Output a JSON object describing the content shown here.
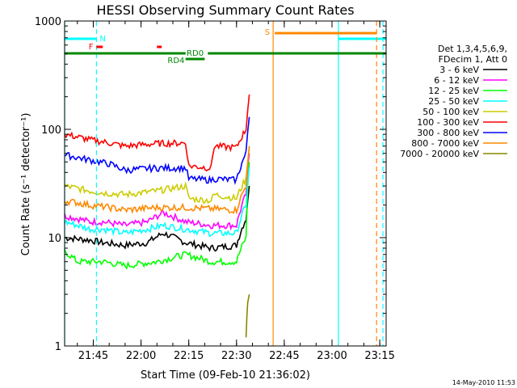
{
  "chart_data": {
    "type": "line",
    "title": "HESSI Observing Summary Count Rates",
    "xlabel": "Start Time (09-Feb-10 21:36:02)",
    "ylabel": "Count Rate (s⁻¹ detector⁻¹)",
    "xlim": [
      "21:36",
      "23:17"
    ],
    "ylim": [
      1,
      1000
    ],
    "yscale": "log",
    "xticks": [
      "21:45",
      "22:00",
      "22:15",
      "22:30",
      "22:45",
      "23:00",
      "23:15"
    ],
    "yticks": [
      "1",
      "10",
      "100",
      "1000"
    ],
    "legend_header": [
      "Det 1,3,4,5,6,9,",
      "FDecim 1, Att 0"
    ],
    "series": [
      {
        "name": "3 - 6 keV",
        "color": "#000000",
        "x": [
          "21:36",
          "21:44",
          "21:48",
          "21:55",
          "22:02",
          "22:07",
          "22:14",
          "22:22",
          "22:30",
          "22:33",
          "22:34"
        ],
        "values": [
          10,
          9.5,
          9,
          8.5,
          9,
          11,
          9,
          8,
          8.5,
          15,
          30
        ]
      },
      {
        "name": "6 - 12 keV",
        "color": "#ff00ff",
        "x": [
          "21:36",
          "21:44",
          "21:48",
          "21:55",
          "22:02",
          "22:07",
          "22:14",
          "22:22",
          "22:30",
          "22:33",
          "22:34"
        ],
        "values": [
          16,
          14,
          14,
          13,
          14,
          17,
          14,
          13,
          13,
          25,
          60
        ]
      },
      {
        "name": "12 - 25 keV",
        "color": "#00ff00",
        "x": [
          "21:36",
          "21:40",
          "21:48",
          "21:55",
          "22:05",
          "22:14",
          "22:22",
          "22:30",
          "22:33",
          "22:34"
        ],
        "values": [
          7.5,
          6,
          6,
          5.5,
          6,
          7,
          6,
          6,
          10,
          50
        ]
      },
      {
        "name": "25 - 50 keV",
        "color": "#00ffff",
        "x": [
          "21:36",
          "21:44",
          "21:48",
          "21:55",
          "22:02",
          "22:07",
          "22:14",
          "22:22",
          "22:30",
          "22:33",
          "22:34"
        ],
        "values": [
          14,
          12,
          12,
          11,
          12,
          13,
          12,
          11,
          11,
          20,
          45
        ]
      },
      {
        "name": "50 - 100 keV",
        "color": "#cccc00",
        "x": [
          "21:36",
          "21:44",
          "21:48",
          "21:55",
          "22:05",
          "22:14",
          "22:15",
          "22:22",
          "22:23",
          "22:30",
          "22:33",
          "22:34"
        ],
        "values": [
          30,
          27,
          26,
          25,
          27,
          30,
          23,
          22,
          25,
          23,
          35,
          70
        ]
      },
      {
        "name": "100 - 300 keV",
        "color": "#ff0000",
        "x": [
          "21:36",
          "21:44",
          "21:50",
          "21:55",
          "22:05",
          "22:14",
          "22:15",
          "22:22",
          "22:23",
          "22:30",
          "22:33",
          "22:34"
        ],
        "values": [
          90,
          80,
          75,
          70,
          74,
          75,
          46,
          44,
          70,
          68,
          100,
          210
        ]
      },
      {
        "name": "300 - 800 keV",
        "color": "#0000ff",
        "x": [
          "21:36",
          "21:44",
          "21:50",
          "21:55",
          "22:05",
          "22:14",
          "22:15",
          "22:22",
          "22:23",
          "22:30",
          "22:33",
          "22:34"
        ],
        "values": [
          58,
          52,
          48,
          42,
          44,
          44,
          35,
          34,
          35,
          34,
          60,
          130
        ]
      },
      {
        "name": "800 - 7000 keV",
        "color": "#ff8800",
        "x": [
          "21:36",
          "21:44",
          "21:50",
          "21:55",
          "22:05",
          "22:14",
          "22:30",
          "22:33",
          "22:34"
        ],
        "values": [
          22,
          20,
          19,
          18,
          19,
          19,
          18,
          30,
          70
        ]
      },
      {
        "name": "7000 - 20000 keV",
        "color": "#888800",
        "x": [
          "22:33",
          "22:33.5",
          "22:34"
        ],
        "values": [
          1.2,
          2.5,
          3
        ]
      }
    ],
    "flags": [
      {
        "label": "N",
        "color": "#00ffff"
      },
      {
        "label": "F",
        "color": "#ff0000"
      },
      {
        "label": "RD0",
        "color": "#008800"
      },
      {
        "label": "RD4",
        "color": "#008800"
      },
      {
        "label": "S",
        "color": "#ff8800"
      }
    ],
    "timestamp": "14-May-2010 11:53"
  }
}
